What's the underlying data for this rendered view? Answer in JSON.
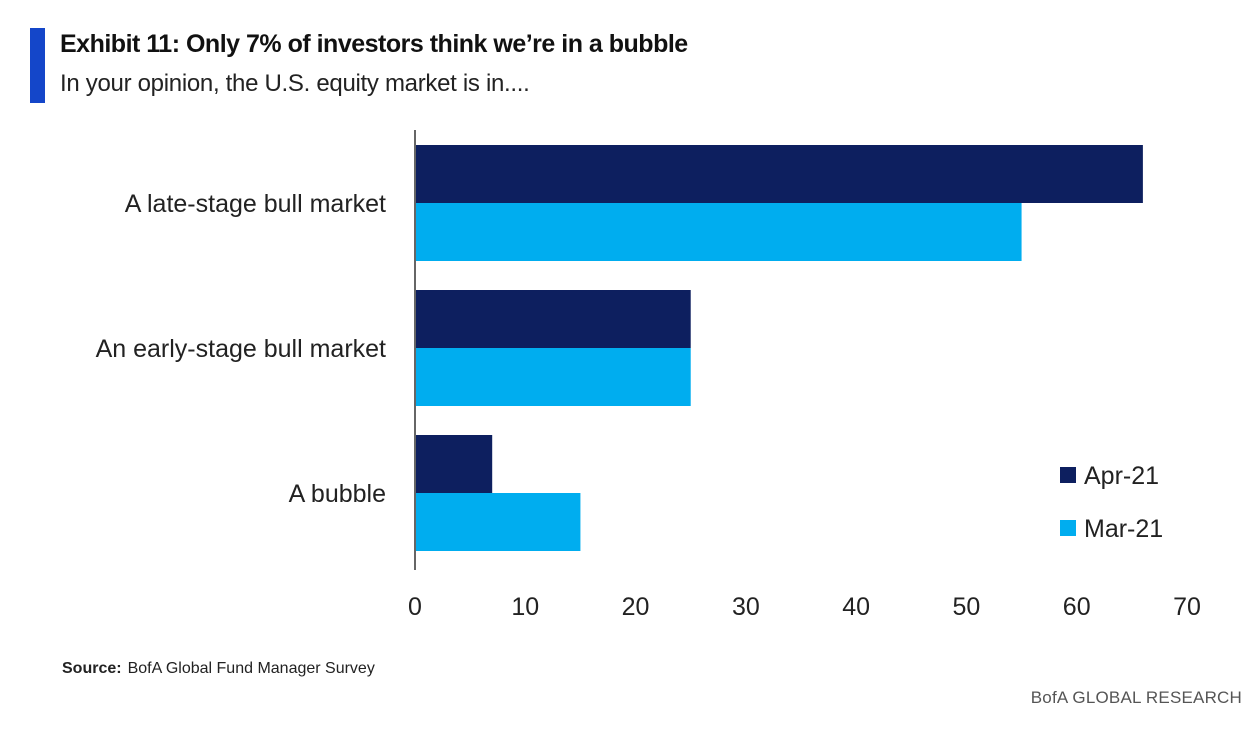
{
  "header": {
    "title": "Exhibit 11: Only 7% of investors think we’re in a bubble",
    "subtitle": "In your opinion, the U.S. equity market is in....",
    "accent_color": "#1446C9"
  },
  "chart_data": {
    "type": "bar",
    "orientation": "horizontal",
    "categories": [
      "A late-stage bull market",
      "An early-stage bull market",
      "A bubble"
    ],
    "series": [
      {
        "name": "Apr-21",
        "color": "#0D1F5F",
        "values": [
          66,
          25,
          7
        ]
      },
      {
        "name": "Mar-21",
        "color": "#00ADEF",
        "values": [
          55,
          25,
          15
        ]
      }
    ],
    "xlim": [
      0,
      70
    ],
    "xticks": [
      "0",
      "10",
      "20",
      "30",
      "40",
      "50",
      "60",
      "70"
    ],
    "grid": false,
    "legend_position": "bottom-right"
  },
  "footer": {
    "source_label": "Source:",
    "source_text": "BofA Global Fund Manager Survey",
    "brand": "BofA GLOBAL RESEARCH"
  }
}
